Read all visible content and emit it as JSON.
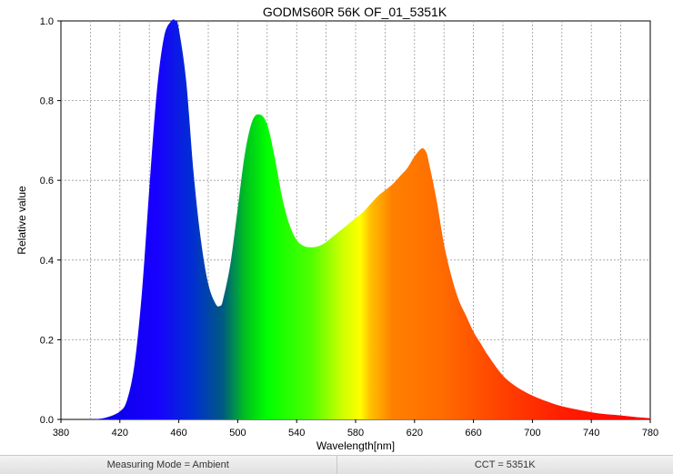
{
  "chart_data": {
    "type": "area",
    "title": "GODMS60R 56K OF_01_5351K",
    "xlabel": "Wavelength[nm]",
    "ylabel": "Relative value",
    "xlim": [
      380,
      780
    ],
    "ylim": [
      0,
      1.0
    ],
    "x_ticks": [
      380,
      420,
      460,
      500,
      540,
      580,
      620,
      660,
      700,
      740,
      780
    ],
    "y_ticks": [
      0.0,
      0.2,
      0.4,
      0.6,
      0.8,
      1.0
    ],
    "x_tick_labels": [
      "380",
      "420",
      "460",
      "500",
      "540",
      "580",
      "620",
      "660",
      "700",
      "740",
      "780"
    ],
    "y_tick_labels": [
      "0.0",
      "0.2",
      "0.4",
      "0.6",
      "0.8",
      "1.0"
    ],
    "grid": true,
    "fill": "visible-spectrum gradient",
    "series": [
      {
        "x": [
          400,
          410,
          420,
          425,
          430,
          435,
          440,
          445,
          450,
          455,
          458,
          460,
          465,
          470,
          475,
          480,
          485,
          488,
          490,
          495,
          500,
          505,
          510,
          515,
          520,
          525,
          530,
          535,
          540,
          545,
          550,
          555,
          560,
          565,
          570,
          575,
          580,
          585,
          590,
          595,
          600,
          605,
          610,
          615,
          620,
          625,
          628,
          630,
          635,
          640,
          645,
          650,
          655,
          660,
          665,
          670,
          680,
          690,
          700,
          710,
          720,
          730,
          740,
          750,
          760,
          770,
          780
        ],
        "y": [
          0.0,
          0.004,
          0.02,
          0.05,
          0.14,
          0.32,
          0.58,
          0.82,
          0.96,
          1.0,
          1.0,
          0.98,
          0.85,
          0.62,
          0.45,
          0.34,
          0.29,
          0.285,
          0.3,
          0.39,
          0.53,
          0.67,
          0.75,
          0.765,
          0.74,
          0.66,
          0.56,
          0.49,
          0.45,
          0.435,
          0.432,
          0.435,
          0.445,
          0.46,
          0.475,
          0.49,
          0.505,
          0.52,
          0.54,
          0.56,
          0.575,
          0.59,
          0.61,
          0.63,
          0.66,
          0.68,
          0.67,
          0.64,
          0.55,
          0.44,
          0.36,
          0.3,
          0.26,
          0.22,
          0.19,
          0.16,
          0.11,
          0.08,
          0.06,
          0.045,
          0.033,
          0.025,
          0.018,
          0.013,
          0.01,
          0.006,
          0.003
        ]
      }
    ]
  },
  "status": {
    "measuring_mode": "Measuring Mode = Ambient",
    "cct": "CCT = 5351K"
  }
}
